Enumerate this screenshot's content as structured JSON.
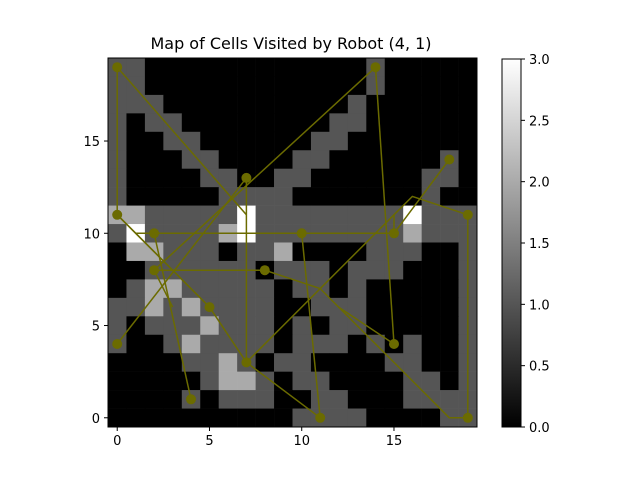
{
  "chart_data": {
    "type": "heatmap",
    "title": "Map of Cells Visited by Robot (4, 1)",
    "xlabel": "",
    "ylabel": "",
    "grid_size": [
      20,
      20
    ],
    "xlim": [
      -0.5,
      19.5
    ],
    "ylim": [
      -0.5,
      19.5
    ],
    "x_ticks": [
      0,
      5,
      10,
      15
    ],
    "y_ticks": [
      0,
      5,
      10,
      15
    ],
    "colormap": "gray",
    "color_range": [
      0.0,
      3.0
    ],
    "colorbar_ticks": [
      "0.0",
      "0.5",
      "1.0",
      "1.5",
      "2.0",
      "2.5",
      "3.0"
    ],
    "grid": false,
    "row_order": "top row is y = 19, bottom row is y = 0",
    "cells": [
      "11000000000000100000",
      "11000000000000100000",
      "11100000000001000000",
      "10110000000011000000",
      "10011000000110000000",
      "10001100001100000010",
      "10000110011000000110",
      "10000011110000000100",
      "22111113111111113111",
      "13111123111111112111",
      "02211101120000111001",
      "00111111011101110001",
      "01221111101101000001",
      "11212111100111000001",
      "10111211101011000001",
      "10012111101110101001",
      "00001121011000011001",
      "00000122101100001101",
      "00001011100110001111",
      "00000000001111000011"
    ],
    "path_color": "#6b6b00",
    "path_segments": [
      [
        [
          0,
          19
        ],
        [
          0,
          11
        ],
        [
          1,
          10
        ],
        [
          2,
          10
        ],
        [
          10,
          10
        ],
        [
          15,
          10
        ],
        [
          18,
          14
        ]
      ],
      [
        [
          0,
          19
        ],
        [
          7,
          11
        ]
      ],
      [
        [
          14,
          19
        ],
        [
          2,
          8
        ]
      ],
      [
        [
          14,
          19
        ],
        [
          15,
          4
        ]
      ],
      [
        [
          0,
          4
        ],
        [
          7,
          13
        ]
      ],
      [
        [
          0,
          11
        ],
        [
          5,
          6
        ],
        [
          7,
          3
        ],
        [
          15,
          11
        ]
      ],
      [
        [
          2,
          8
        ],
        [
          8,
          8
        ],
        [
          11,
          7
        ],
        [
          12,
          6
        ],
        [
          15,
          4
        ]
      ],
      [
        [
          2,
          10
        ],
        [
          4,
          1
        ]
      ],
      [
        [
          7,
          3
        ],
        [
          11,
          0
        ]
      ],
      [
        [
          7,
          13
        ],
        [
          7,
          3
        ]
      ],
      [
        [
          10,
          10
        ],
        [
          11,
          0
        ]
      ],
      [
        [
          15,
          10
        ],
        [
          15,
          11
        ],
        [
          16,
          12
        ],
        [
          19,
          11
        ],
        [
          19,
          0
        ],
        [
          18,
          0
        ],
        [
          15,
          3
        ],
        [
          12,
          6
        ]
      ],
      [
        [
          1,
          10
        ],
        [
          4,
          7
        ],
        [
          5,
          6
        ]
      ],
      [
        [
          2,
          8
        ],
        [
          3,
          6
        ]
      ]
    ],
    "stops": [
      [
        0,
        19
      ],
      [
        14,
        19
      ],
      [
        18,
        14
      ],
      [
        7,
        13
      ],
      [
        0,
        11
      ],
      [
        19,
        11
      ],
      [
        2,
        10
      ],
      [
        10,
        10
      ],
      [
        15,
        10
      ],
      [
        2,
        8
      ],
      [
        8,
        8
      ],
      [
        5,
        6
      ],
      [
        0,
        4
      ],
      [
        15,
        4
      ],
      [
        7,
        3
      ],
      [
        4,
        1
      ],
      [
        11,
        0
      ],
      [
        19,
        0
      ]
    ]
  }
}
